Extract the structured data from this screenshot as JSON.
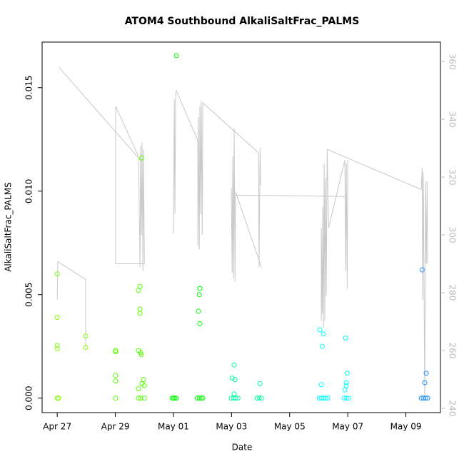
{
  "chart_data": {
    "type": "scatter",
    "title": "ATOM4 Southbound AlkaliSaltFrac_PALMS",
    "xlabel": "Date",
    "ylabel": "AlkaliSaltFrac_PALMS",
    "xlim": [
      -0.52,
      13.19
    ],
    "xticks": [
      {
        "value": 0,
        "label": "Apr 27"
      },
      {
        "value": 2,
        "label": "Apr 29"
      },
      {
        "value": 4,
        "label": "May 01"
      },
      {
        "value": 6,
        "label": "May 03"
      },
      {
        "value": 8,
        "label": "May 05"
      },
      {
        "value": 10,
        "label": "May 07"
      },
      {
        "value": 12,
        "label": "May 09"
      }
    ],
    "ylim": [
      -0.0007,
      0.0172
    ],
    "yticks": [
      {
        "value": 0,
        "label": "0.000"
      },
      {
        "value": 0.005,
        "label": "0.005"
      },
      {
        "value": 0.01,
        "label": "0.010"
      },
      {
        "value": 0.015,
        "label": "0.015"
      }
    ],
    "y2lim": [
      238.5,
      366.7
    ],
    "y2ticks": [
      240,
      260,
      280,
      300,
      320,
      340,
      360
    ],
    "series": [
      {
        "type": "line",
        "axis": "y2",
        "color": "#c8c8c8",
        "x": [
          0,
          0.02,
          0.98,
          0.98,
          null,
          0.05,
          2.8,
          2.85,
          2.87,
          2.9,
          2.92,
          2.95,
          2.97,
          3.0,
          2.01,
          2.01,
          2.8,
          null,
          4.0,
          4.03,
          4.05,
          4.08,
          4.1,
          4.84,
          4.84,
          4.86,
          4.89,
          4.91,
          4.94,
          4.96,
          4.99,
          5.01,
          6.93,
          6.95,
          6.98,
          7.0,
          null,
          5.99,
          6.02,
          6.04,
          6.07,
          6.09,
          6.12,
          6.14,
          7.03,
          null,
          6.14,
          9.9,
          null,
          9.09,
          9.09,
          9.12,
          9.14,
          9.16,
          9.19,
          9.21,
          9.24,
          9.26,
          9.29,
          9.34,
          9.9,
          9.93,
          9.95,
          9.98,
          10.0,
          null,
          9.29,
          12.53,
          12.56,
          12.58,
          12.6,
          12.63,
          12.65,
          12.68,
          12.7,
          12.73,
          12.75
        ],
        "values": [
          277.6,
          290.7,
          284.6,
          260.8,
          null,
          358.1,
          326.6,
          288.8,
          330.8,
          299.9,
          332.1,
          287.5,
          329.6,
          290.0,
          290.0,
          344.5,
          327.1,
          null,
          300.4,
          346.9,
          307.3,
          349.4,
          349.9,
          332.6,
          296.2,
          340.7,
          295.0,
          344.5,
          307.3,
          346.4,
          299.9,
          345.7,
          328.4,
          288.8,
          330.1,
          317.2,
          null,
          316.0,
          287.0,
          327.1,
          285.0,
          337.0,
          283.8,
          314.8,
          288.8,
          null,
          313.8,
          313.3,
          null,
          270.2,
          302.4,
          272.7,
          309.8,
          267.7,
          324.7,
          270.2,
          319.7,
          278.9,
          329.6,
          302.4,
          325.9,
          287.5,
          324.7,
          281.3,
          325.9,
          null,
          329.6,
          315.7,
          323.2,
          277.6,
          321.7,
          275.1,
          243.0,
          318.5,
          290.0,
          318.5,
          290.0
        ]
      },
      {
        "type": "scatter",
        "color": "#80ff00",
        "x": [
          0,
          0,
          0,
          0,
          0,
          0.05,
          0.98,
          0.98
        ],
        "values": [
          0.006,
          0.0039,
          0.00255,
          0.00238,
          0,
          0,
          0.003,
          0.00245
        ]
      },
      {
        "type": "scatter",
        "color": "#55ff00",
        "x": [
          2.01,
          2.01,
          2.01,
          2.01,
          2.01,
          2.85,
          2.8,
          2.85,
          2.85,
          2.8,
          2.87,
          2.9,
          2.9,
          2.97,
          2.92,
          3.0,
          2.8,
          2.8,
          2.87,
          3.0
        ],
        "values": [
          0.0023,
          0.00224,
          0.0011,
          0.00083,
          0,
          0.0054,
          0.0052,
          0.0043,
          0.0041,
          0.0023,
          0.0022,
          0.0021,
          0.0116,
          0.0009,
          0.0007,
          0.0006,
          0.00045,
          0,
          0,
          0
        ]
      },
      {
        "type": "scatter",
        "color": "#00ff00",
        "x": [
          4.1,
          3.96,
          4.0,
          4.05,
          4.1,
          4.91,
          4.89,
          4.86,
          4.91,
          4.82,
          4.89,
          4.96,
          5.01
        ],
        "values": [
          0.01655,
          0,
          0,
          0,
          0,
          0.0053,
          0.005,
          0.0042,
          0.0036,
          0,
          0,
          0,
          0
        ]
      },
      {
        "type": "scatter",
        "color": "#00ffa0",
        "x": [
          6.09,
          6.02,
          6.12,
          6.09,
          5.99,
          6.07,
          6.14,
          6.22,
          6.98,
          6.88,
          6.95,
          7.03
        ],
        "values": [
          0.0016,
          0.00097,
          0.0009,
          0.0002,
          0,
          0,
          0,
          0,
          0.0007,
          0,
          0,
          0
        ]
      },
      {
        "type": "scatter",
        "color": "#00ffff",
        "x": [
          9.04,
          9.16,
          9.12,
          9.09,
          9.02,
          9.09,
          9.16,
          9.24,
          9.31,
          9.93,
          9.98,
          9.95,
          9.95,
          9.9,
          9.88,
          9.95,
          10.02
        ],
        "values": [
          0.0033,
          0.0031,
          0.0025,
          0.00065,
          0,
          0,
          0,
          0,
          0,
          0.0029,
          0.0012,
          0.00075,
          0.0006,
          0.0004,
          0,
          0,
          0
        ]
      },
      {
        "type": "scatter",
        "color": "#1e90ff",
        "x": [
          12.56,
          12.7,
          12.65,
          12.53,
          12.6,
          12.68,
          12.75
        ],
        "values": [
          0.0062,
          0.0012,
          0.00075,
          0,
          0,
          0,
          0
        ]
      }
    ]
  }
}
